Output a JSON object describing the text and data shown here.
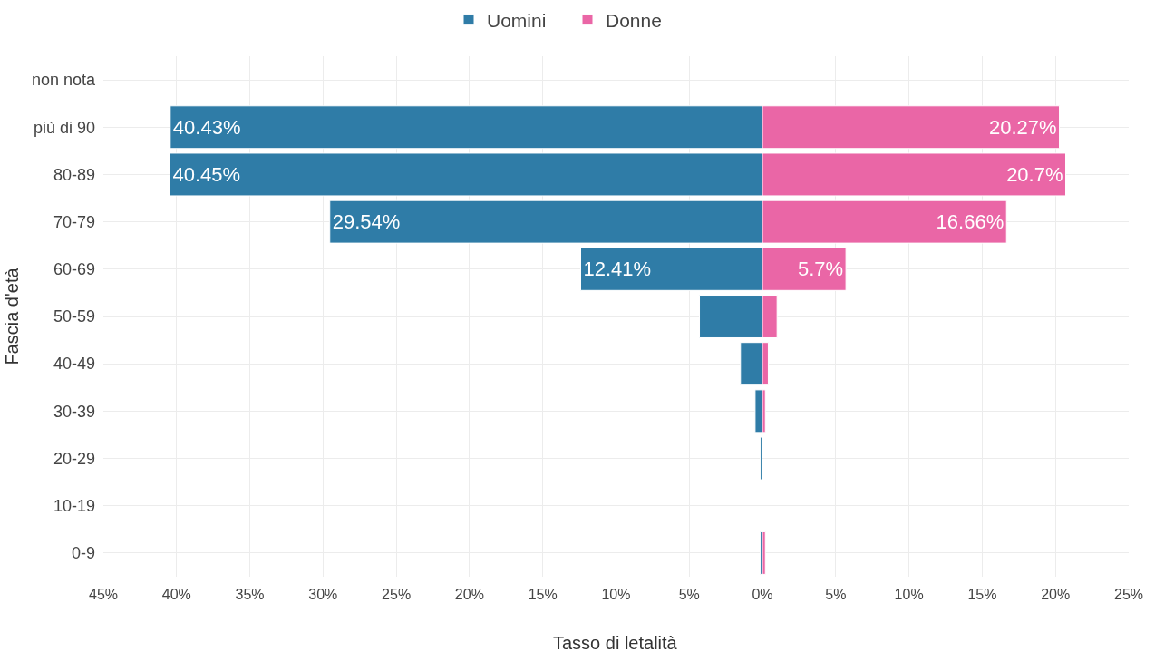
{
  "chart_data": [
    {
      "type": "bar",
      "orientation": "horizontal",
      "xlabel": "Tasso di letalità",
      "ylabel": "Fascia d'età",
      "categories": [
        "non nota",
        "più di 90",
        "80-89",
        "70-79",
        "60-69",
        "50-59",
        "40-49",
        "30-39",
        "20-29",
        "10-19",
        "0-9"
      ],
      "series": [
        {
          "name": "Uomini",
          "color": "#2f7ca7",
          "values": [
            null,
            40.43,
            40.45,
            29.54,
            12.41,
            4.3,
            1.5,
            0.5,
            0.15,
            null,
            0.15
          ],
          "value_labels": [
            null,
            "40.43%",
            "40.45%",
            "29.54%",
            "12.41%",
            null,
            null,
            null,
            null,
            null,
            null
          ]
        }
      ],
      "xlim": [
        45,
        0
      ],
      "xticks": [
        {
          "value": 45,
          "label": "45%"
        },
        {
          "value": 40,
          "label": "40%"
        },
        {
          "value": 35,
          "label": "35%"
        },
        {
          "value": 30,
          "label": "30%"
        },
        {
          "value": 25,
          "label": "25%"
        },
        {
          "value": 20,
          "label": "20%"
        },
        {
          "value": 15,
          "label": "15%"
        },
        {
          "value": 10,
          "label": "10%"
        },
        {
          "value": 5,
          "label": "5%"
        },
        {
          "value": 0,
          "label": "0%"
        }
      ],
      "grid": true,
      "legend": "top"
    },
    {
      "type": "bar",
      "orientation": "horizontal",
      "categories": [
        null,
        null,
        null,
        null,
        null,
        null,
        null,
        null,
        null,
        null,
        null
      ],
      "series": [
        {
          "name": "Donne",
          "color": "#ea66a6",
          "values": [
            null,
            20.27,
            20.7,
            16.66,
            5.7,
            1.0,
            0.4,
            0.2,
            null,
            null,
            0.2
          ],
          "value_labels": [
            null,
            "20.27%",
            "20.7%",
            "16.66%",
            "5.7%",
            null,
            null,
            null,
            null,
            null,
            null
          ]
        }
      ],
      "xlim": [
        0,
        25
      ],
      "xticks": [
        {
          "value": 5,
          "label": "5%"
        },
        {
          "value": 10,
          "label": "10%"
        },
        {
          "value": 15,
          "label": "15%"
        },
        {
          "value": 20,
          "label": "20%"
        },
        {
          "value": 25,
          "label": "25%"
        }
      ],
      "grid": true,
      "legend": "top"
    }
  ]
}
